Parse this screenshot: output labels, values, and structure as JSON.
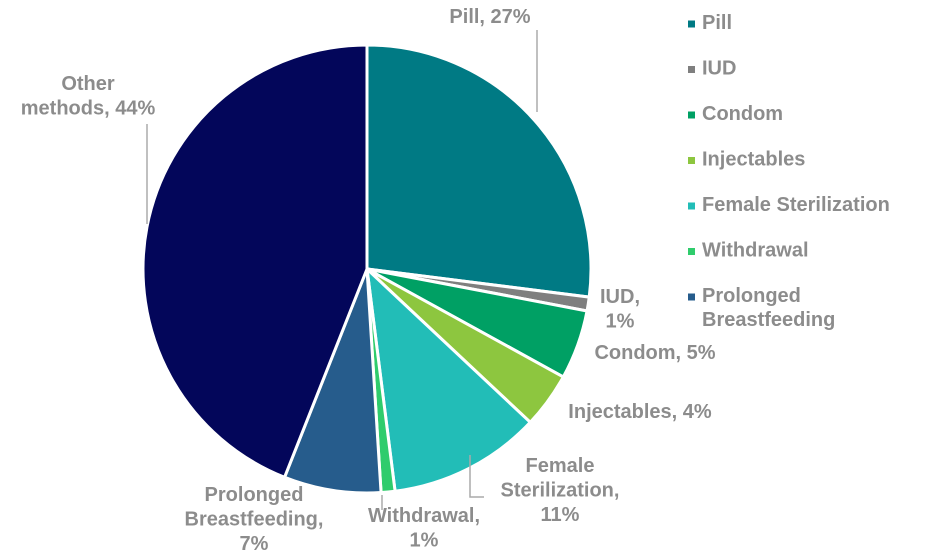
{
  "chart_data": {
    "type": "pie",
    "categories": [
      "Pill",
      "IUD",
      "Condom",
      "Injectables",
      "Female Sterilization",
      "Withdrawal",
      "Prolonged Breastfeeding",
      "Other methods"
    ],
    "values": [
      27,
      1,
      5,
      4,
      11,
      1,
      7,
      44
    ],
    "value_labels": [
      "Pill, 27%",
      "IUD,\n1%",
      "Condom, 5%",
      "Injectables, 4%",
      "Female\nSterilization,\n11%",
      "Withdrawal,\n1%",
      "Prolonged\nBreastfeeding,\n7%",
      "Other\nmethods, 44%"
    ],
    "colors": [
      "#007a84",
      "#7f7f7f",
      "#00a064",
      "#8dc63f",
      "#22bdb7",
      "#2fcc6c",
      "#265c8c",
      "#03065a"
    ],
    "legend": "right",
    "legend_entries": 7
  }
}
